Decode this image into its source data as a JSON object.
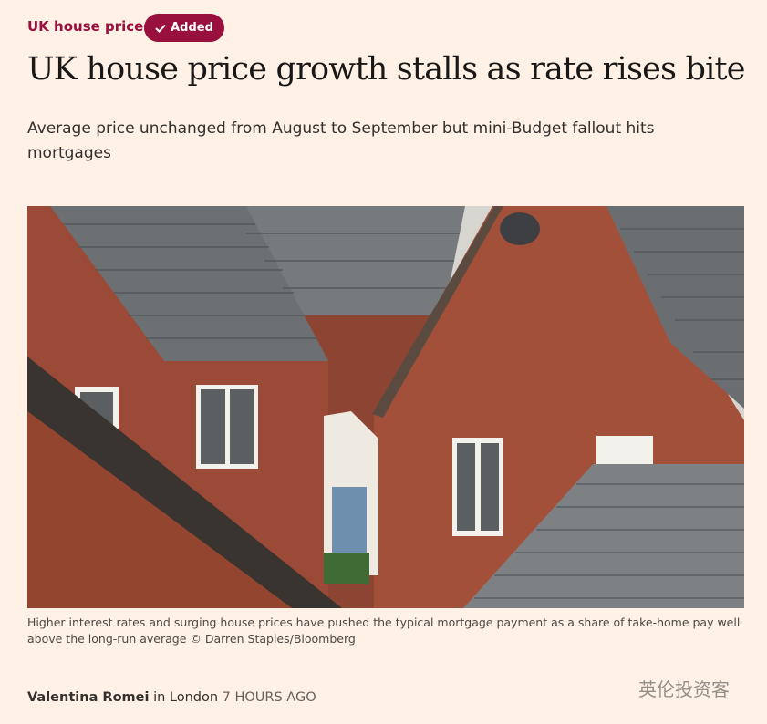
{
  "topic": "UK house prices",
  "follow_button": "Added",
  "headline": "UK house price growth stalls as rate rises bite",
  "standfirst": "Average price unchanged from August to September but mini-Budget fallout hits mortgages",
  "image": {
    "caption": "Higher interest rates and surging house prices have pushed the typical mortgage payment as a share of take-home pay well above the long-run average © Darren Staples/Bloomberg"
  },
  "byline": {
    "author": "Valentina Romei",
    "location": "in London",
    "time": "7 HOURS AGO"
  },
  "watermark": "英伦投资客"
}
